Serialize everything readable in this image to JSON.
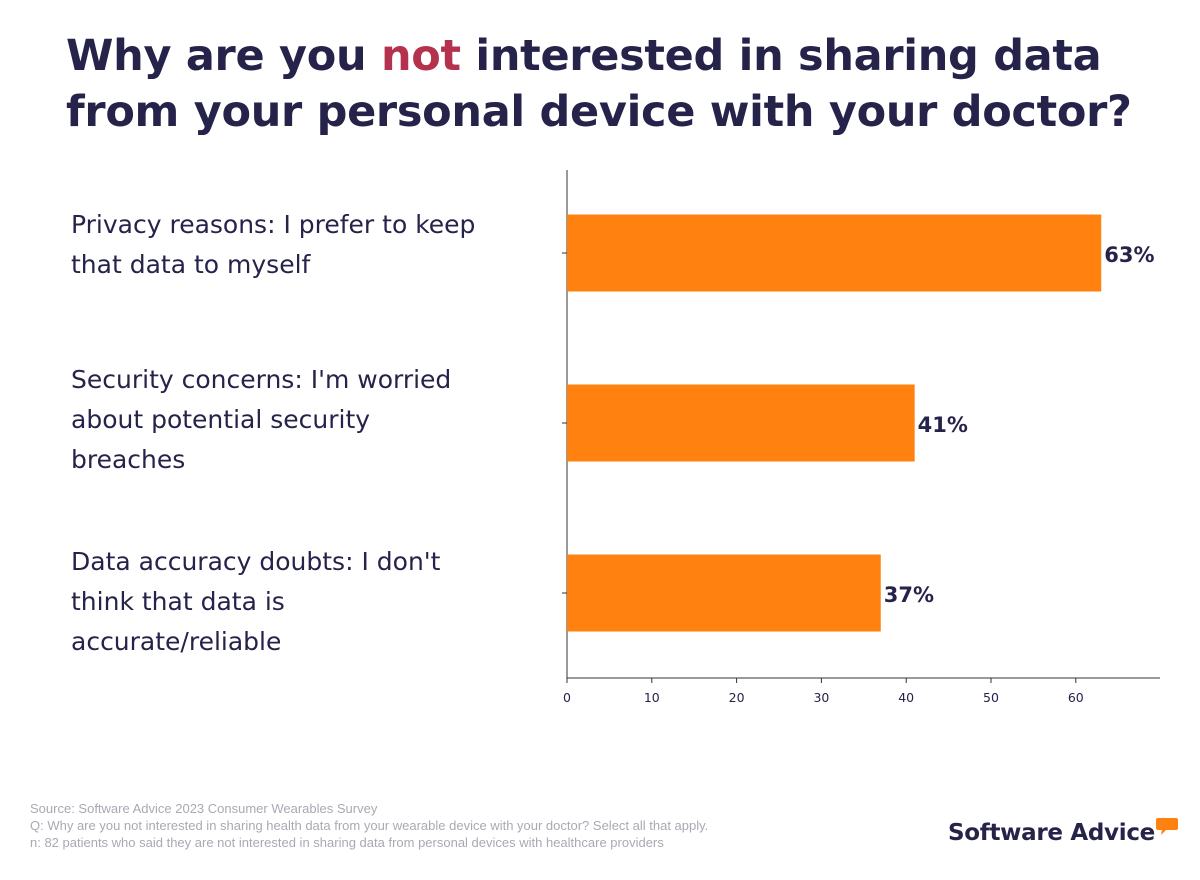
{
  "title": {
    "part1": "Why are you ",
    "highlight": "not",
    "part2": " interested in sharing data from your personal device with your doctor?"
  },
  "colors": {
    "title": "#26234a",
    "highlight": "#b5324e",
    "bar": "#ff8210",
    "axis": "#333333",
    "footer": "#a9a9b4",
    "logo_accent": "#ff8210"
  },
  "chart_data": {
    "type": "bar",
    "orientation": "horizontal",
    "categories": [
      "Privacy reasons: I prefer to keep that data to myself",
      "Security concerns: I'm worried about potential security breaches",
      "Data accuracy doubts: I don't think that data is accurate/reliable"
    ],
    "category_lines": [
      [
        "Privacy reasons: I prefer to keep",
        "that data to myself"
      ],
      [
        "Security concerns: I'm worried",
        "about potential security",
        "breaches"
      ],
      [
        "Data accuracy doubts: I don't",
        "think that data is",
        "accurate/reliable"
      ]
    ],
    "values": [
      63,
      41,
      37
    ],
    "data_labels": [
      "63%",
      "41%",
      "37%"
    ],
    "xticks": [
      0,
      10,
      20,
      30,
      40,
      50,
      60
    ],
    "xlim": [
      0,
      70
    ],
    "grid": false,
    "legend": false
  },
  "footer": {
    "source": "Source: Software Advice 2023 Consumer Wearables Survey",
    "question": "Q: Why are you not interested in sharing health data from your wearable device with your doctor? Select all that apply.",
    "sample": "n: 82 patients who said they are not interested in sharing data from personal devices with healthcare providers"
  },
  "logo": {
    "text": "Software Advice",
    "icon": "speech-bubble-icon"
  }
}
